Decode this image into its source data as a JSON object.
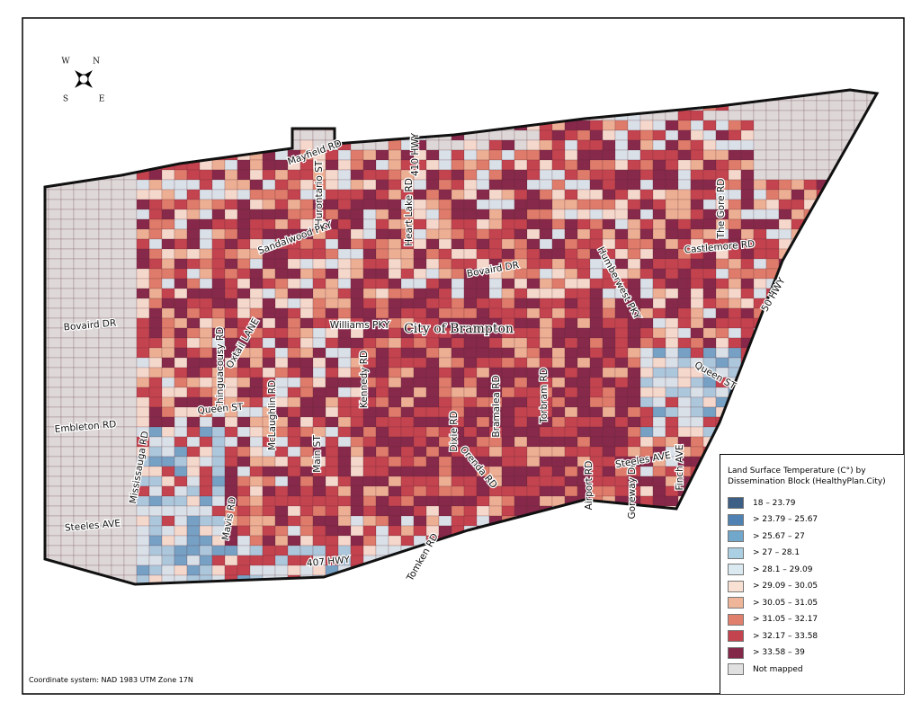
{
  "map": {
    "title": "City of Brampton",
    "compass": [
      "N",
      "E",
      "S",
      "W"
    ],
    "roads": [
      "Mayfield RD",
      "Hurontario ST",
      "410 HWY",
      "Heart Lake RD",
      "Sandalwood PKY",
      "Bovaird DR",
      "Humberwest PKY",
      "The Gore RD",
      "Castlemore RD",
      "50 HWY",
      "Bovaird DR",
      "Williams PKY",
      "Chinguacousy RD",
      "Oxtail LANE",
      "McLaughlin RD",
      "Kennedy RD",
      "Queen ST",
      "Queen ST",
      "Embleton RD",
      "Mississauga RD",
      "Main ST",
      "Dixie RD",
      "Bramalea RD",
      "Torbram RD",
      "Orenda RD",
      "Airport RD",
      "Goreway DR",
      "Finch AVE",
      "Steeles AVE",
      "Steeles AVE",
      "Mavis RD",
      "Tomken RD",
      "407 HWY"
    ],
    "legend": {
      "title": "Land Surface Temperature (C°) by Dissemination Block (HealthyPlan.City)",
      "items": [
        {
          "label": "18 – 23.79",
          "color": "#3d5f85"
        },
        {
          "label": "> 23.79 – 25.67",
          "color": "#4f82b3"
        },
        {
          "label": "> 25.67 – 27",
          "color": "#72a7cc"
        },
        {
          "label": "> 27 – 28.1",
          "color": "#abcfe3"
        },
        {
          "label": "> 28.1 – 29.09",
          "color": "#dbe9f1"
        },
        {
          "label": "> 29.09 – 30.05",
          "color": "#f8e0d3"
        },
        {
          "label": "> 30.05 – 31.05",
          "color": "#efb598"
        },
        {
          "label": "> 31.05 – 32.17",
          "color": "#e07f6c"
        },
        {
          "label": "> 32.17 – 33.58",
          "color": "#c3434f"
        },
        {
          "label": "> 33.58 – 39",
          "color": "#84284a"
        },
        {
          "label": "Not mapped",
          "color": "#e0e0e0"
        }
      ]
    },
    "coordinate_note": "Coordinate system: NAD 1983 UTM Zone 17N"
  }
}
